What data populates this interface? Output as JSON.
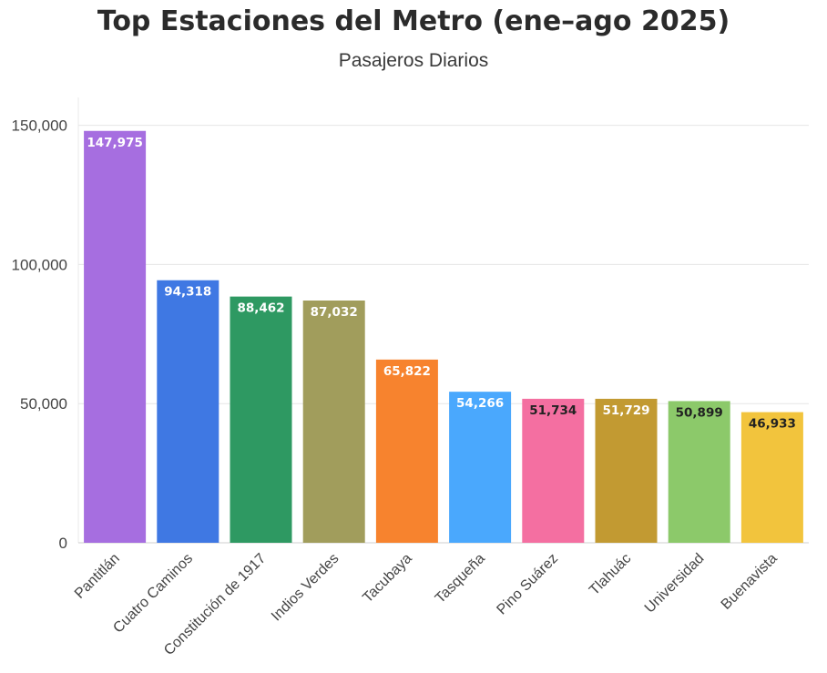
{
  "chart_data": {
    "type": "bar",
    "title": "Top Estaciones del Metro (ene–ago 2025)",
    "subtitle": "Pasajeros Diarios",
    "xlabel": "",
    "ylabel": "",
    "categories": [
      "Pantitlán",
      "Cuatro Caminos",
      "Constitución de 1917",
      "Indios Verdes",
      "Tacubaya",
      "Tasqueña",
      "Pino Suárez",
      "Tlahuác",
      "Universidad",
      "Buenavista"
    ],
    "values": [
      147975,
      94318,
      88462,
      87032,
      65822,
      54266,
      51734,
      51729,
      50899,
      46933
    ],
    "data_labels": [
      "147,975",
      "94,318",
      "88,462",
      "87,032",
      "65,822",
      "54,266",
      "51,734",
      "51,729",
      "50,899",
      "46,933"
    ],
    "colors": [
      "#a66ee0",
      "#3f78e3",
      "#2e9962",
      "#a19d5c",
      "#f7832e",
      "#4aa8fd",
      "#f46fa1",
      "#c29a32",
      "#8cc96a",
      "#f2c43d"
    ],
    "label_colors": [
      "#ffffff",
      "#ffffff",
      "#ffffff",
      "#ffffff",
      "#ffffff",
      "#ffffff",
      "#222222",
      "#ffffff",
      "#222222",
      "#222222"
    ],
    "ylim": [
      0,
      160000
    ],
    "yticks": [
      0,
      50000,
      100000,
      150000
    ],
    "ytick_labels": [
      "0",
      "50,000",
      "100,000",
      "150,000"
    ],
    "grid": true,
    "legend": "none"
  }
}
